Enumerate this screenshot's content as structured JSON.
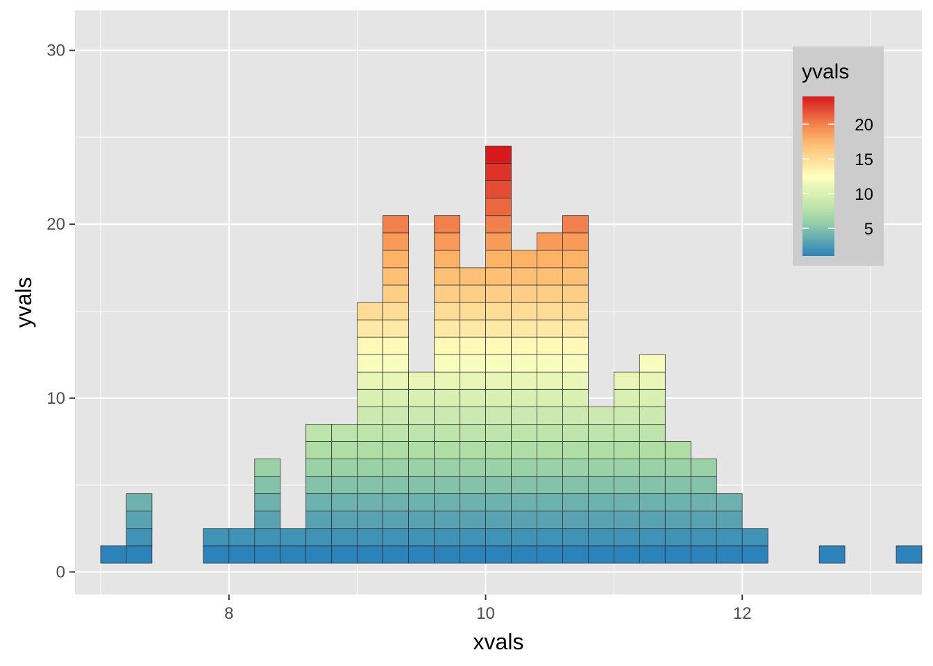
{
  "chart_data": {
    "type": "bar",
    "xlabel": "xvals",
    "ylabel": "yvals",
    "xlim": [
      6.8,
      13.4
    ],
    "ylim": [
      -1.3,
      32.3
    ],
    "x_ticks": [
      8,
      10,
      12
    ],
    "y_ticks": [
      0,
      10,
      20,
      30
    ],
    "grid": true,
    "bin_width": 0.2,
    "x": [
      7.1,
      7.3,
      7.5,
      7.7,
      7.9,
      8.1,
      8.3,
      8.5,
      8.7,
      8.9,
      9.1,
      9.3,
      9.5,
      9.7,
      9.9,
      10.1,
      10.3,
      10.5,
      10.7,
      10.9,
      11.1,
      11.3,
      11.5,
      11.7,
      11.9,
      12.1,
      12.3,
      12.5,
      12.7,
      12.9,
      13.1,
      13.3
    ],
    "values": [
      1,
      4,
      0,
      0,
      2,
      2,
      6,
      2,
      8,
      8,
      15,
      20,
      11,
      20,
      17,
      24,
      18,
      19,
      20,
      9,
      11,
      12,
      7,
      6,
      4,
      2,
      0,
      0,
      1,
      0,
      0,
      1
    ],
    "legend": {
      "title": "yvals",
      "position": "top-right",
      "labels": [
        "20",
        "15",
        "10",
        "5"
      ],
      "label_values": [
        20,
        15,
        10,
        5
      ],
      "range": [
        1,
        24
      ]
    },
    "colors": {
      "palette": [
        "#2b83ba",
        "#abdda4",
        "#ffffbf",
        "#fdae61",
        "#d7191c"
      ],
      "panel_background": "#e5e5e5",
      "grid": "#ffffff",
      "legend_background": "#cccccc"
    }
  }
}
